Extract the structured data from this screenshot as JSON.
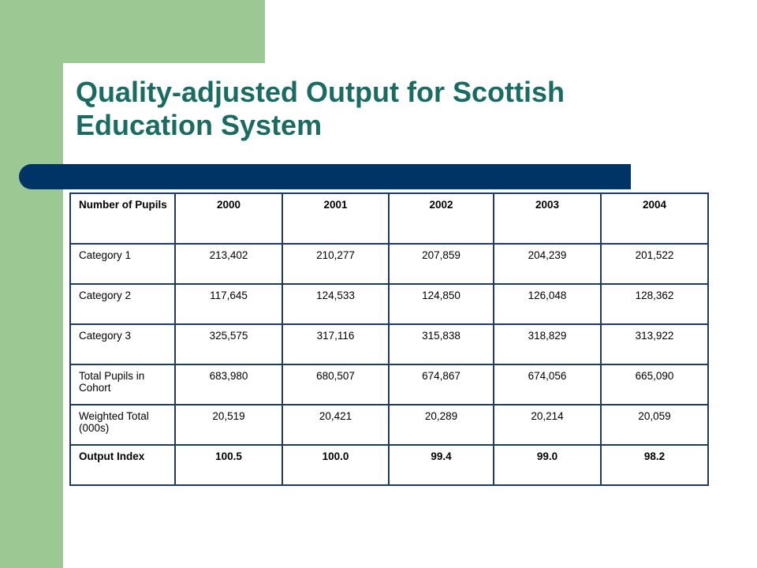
{
  "slide": {
    "title": "Quality-adjusted Output for Scottish Education System"
  },
  "colors": {
    "green_band": "#9cc993",
    "title_text": "#1a6b62",
    "navy_rule": "#003366",
    "table_border": "#1f3a5f"
  },
  "table": {
    "header": [
      "Number of Pupils",
      "2000",
      "2001",
      "2002",
      "2003",
      "2004"
    ],
    "rows": [
      [
        "Category 1",
        "213,402",
        "210,277",
        "207,859",
        "204,239",
        "201,522"
      ],
      [
        "Category 2",
        "117,645",
        "124,533",
        "124,850",
        "126,048",
        "128,362"
      ],
      [
        "Category 3",
        "325,575",
        "317,116",
        "315,838",
        "318,829",
        "313,922"
      ],
      [
        "Total Pupils in Cohort",
        "683,980",
        "680,507",
        "674,867",
        "674,056",
        "665,090"
      ],
      [
        "Weighted Total (000s)",
        "20,519",
        "20,421",
        "20,289",
        "20,214",
        "20,059"
      ],
      [
        "Output Index",
        "100.5",
        "100.0",
        "99.4",
        "99.0",
        "98.2"
      ]
    ]
  }
}
